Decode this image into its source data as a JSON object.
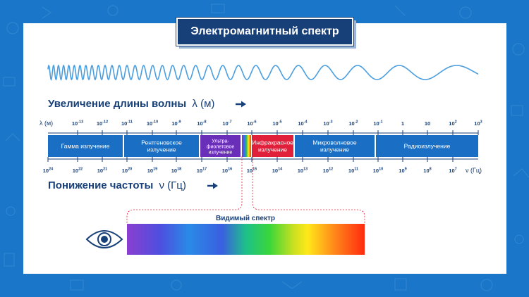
{
  "title": "Электромагнитный спектр",
  "wavelength_heading": {
    "text": "Увеличение длины волны",
    "symbol": "λ (м)"
  },
  "frequency_heading": {
    "text": "Понижение частоты",
    "symbol": "ν (Гц)"
  },
  "wavelength_axis": {
    "unit_label": "λ (м)",
    "ticks": [
      {
        "base": "10",
        "exp": "-13"
      },
      {
        "base": "10",
        "exp": "-12"
      },
      {
        "base": "10",
        "exp": "-11"
      },
      {
        "base": "10",
        "exp": "-10"
      },
      {
        "base": "10",
        "exp": "-9"
      },
      {
        "base": "10",
        "exp": "-8"
      },
      {
        "base": "10",
        "exp": "-7"
      },
      {
        "base": "10",
        "exp": "-6"
      },
      {
        "base": "10",
        "exp": "-5"
      },
      {
        "base": "10",
        "exp": "-4"
      },
      {
        "base": "10",
        "exp": "-3"
      },
      {
        "base": "10",
        "exp": "-2"
      },
      {
        "base": "10",
        "exp": "-1"
      },
      {
        "base": "1",
        "exp": ""
      },
      {
        "base": "10",
        "exp": ""
      },
      {
        "base": "10",
        "exp": "2"
      },
      {
        "base": "10",
        "exp": "3"
      }
    ]
  },
  "frequency_axis": {
    "unit_label": "ν (Гц)",
    "ticks": [
      {
        "base": "10",
        "exp": "24"
      },
      {
        "base": "10",
        "exp": "22"
      },
      {
        "base": "10",
        "exp": "21"
      },
      {
        "base": "10",
        "exp": "20"
      },
      {
        "base": "10",
        "exp": "19"
      },
      {
        "base": "10",
        "exp": "18"
      },
      {
        "base": "10",
        "exp": "17"
      },
      {
        "base": "10",
        "exp": "16"
      },
      {
        "base": "10",
        "exp": "15"
      },
      {
        "base": "10",
        "exp": "14"
      },
      {
        "base": "10",
        "exp": "13"
      },
      {
        "base": "10",
        "exp": "12"
      },
      {
        "base": "10",
        "exp": "11"
      },
      {
        "base": "10",
        "exp": "10"
      },
      {
        "base": "10",
        "exp": "9"
      },
      {
        "base": "10",
        "exp": "8"
      },
      {
        "base": "10",
        "exp": "7"
      }
    ]
  },
  "bands": [
    {
      "lines": [
        "Гамма излучение"
      ],
      "color": "#1a6fc4"
    },
    {
      "lines": [
        "Рентгеновское",
        "излучение"
      ],
      "color": "#1a6fc4"
    },
    {
      "lines": [
        "Ультра-",
        "фиолетовое",
        "излучение"
      ],
      "color": "#6a2fb8"
    },
    {
      "lines": [
        "Инфракрасное",
        "излучение"
      ],
      "color": "#e0203a"
    },
    {
      "lines": [
        "Микроволновое",
        "излучение"
      ],
      "color": "#1a6fc4"
    },
    {
      "lines": [
        "Радиоизлучение"
      ],
      "color": "#1a6fc4"
    }
  ],
  "visible_spectrum": {
    "label": "Видимый спектр"
  },
  "colors": {
    "background": "#1976c8",
    "navy": "#173f78",
    "band_blue": "#1a6fc4",
    "wave": "#4a9ee0"
  },
  "icons": [
    "eye-icon",
    "arrow-right-icon"
  ]
}
